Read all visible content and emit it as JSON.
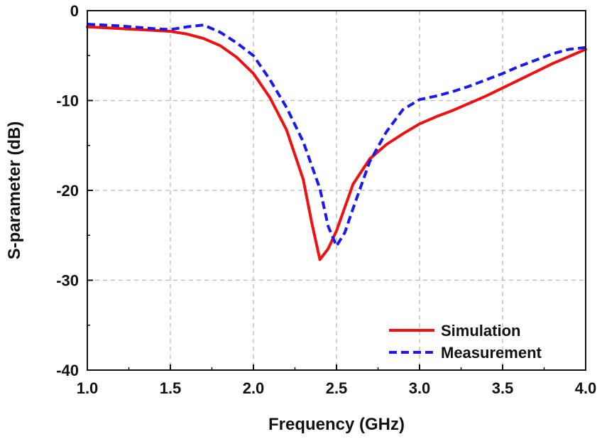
{
  "chart_data": {
    "type": "line",
    "title": "",
    "xlabel": "Frequency (GHz)",
    "ylabel": "S-parameter (dB)",
    "xlim": [
      1.0,
      4.0
    ],
    "ylim": [
      -40,
      0
    ],
    "x_ticks": [
      1.0,
      1.5,
      2.0,
      2.5,
      3.0,
      3.5,
      4.0
    ],
    "x_tick_labels": [
      "1.0",
      "1.5",
      "2.0",
      "2.5",
      "3.0",
      "3.5",
      "4.0"
    ],
    "y_ticks": [
      0,
      -10,
      -20,
      -30,
      -40
    ],
    "y_tick_labels": [
      "0",
      "-10",
      "-20",
      "-30",
      "-40"
    ],
    "grid": true,
    "legend_position": "bottom-right",
    "series": [
      {
        "name": "Simulation",
        "color": "#ee1111",
        "style": "solid",
        "x": [
          1.0,
          1.2,
          1.4,
          1.5,
          1.6,
          1.7,
          1.8,
          1.9,
          2.0,
          2.1,
          2.2,
          2.3,
          2.35,
          2.4,
          2.45,
          2.5,
          2.6,
          2.7,
          2.8,
          2.9,
          3.0,
          3.1,
          3.2,
          3.3,
          3.4,
          3.5,
          3.6,
          3.7,
          3.8,
          3.9,
          4.0
        ],
        "y": [
          -1.8,
          -2.0,
          -2.2,
          -2.3,
          -2.6,
          -3.1,
          -3.9,
          -5.2,
          -7.0,
          -9.7,
          -13.3,
          -18.8,
          -23.5,
          -27.7,
          -26.5,
          -24.5,
          -19.3,
          -16.5,
          -14.9,
          -13.7,
          -12.6,
          -11.8,
          -11.1,
          -10.3,
          -9.5,
          -8.6,
          -7.7,
          -6.8,
          -5.9,
          -5.1,
          -4.3
        ]
      },
      {
        "name": "Measurement",
        "color": "#1a1aee",
        "style": "dashed",
        "x": [
          1.0,
          1.2,
          1.4,
          1.5,
          1.6,
          1.7,
          1.8,
          1.9,
          2.0,
          2.1,
          2.2,
          2.3,
          2.4,
          2.45,
          2.5,
          2.55,
          2.6,
          2.7,
          2.8,
          2.9,
          3.0,
          3.1,
          3.2,
          3.3,
          3.4,
          3.5,
          3.6,
          3.7,
          3.8,
          3.9,
          4.0
        ],
        "y": [
          -1.5,
          -1.7,
          -2.0,
          -2.1,
          -1.8,
          -1.6,
          -2.4,
          -3.6,
          -5.0,
          -7.7,
          -10.8,
          -14.6,
          -19.8,
          -24.0,
          -26.2,
          -24.7,
          -22.0,
          -16.8,
          -13.5,
          -11.0,
          -9.9,
          -9.5,
          -9.0,
          -8.4,
          -7.7,
          -7.0,
          -6.2,
          -5.5,
          -4.8,
          -4.3,
          -4.1
        ]
      }
    ]
  }
}
